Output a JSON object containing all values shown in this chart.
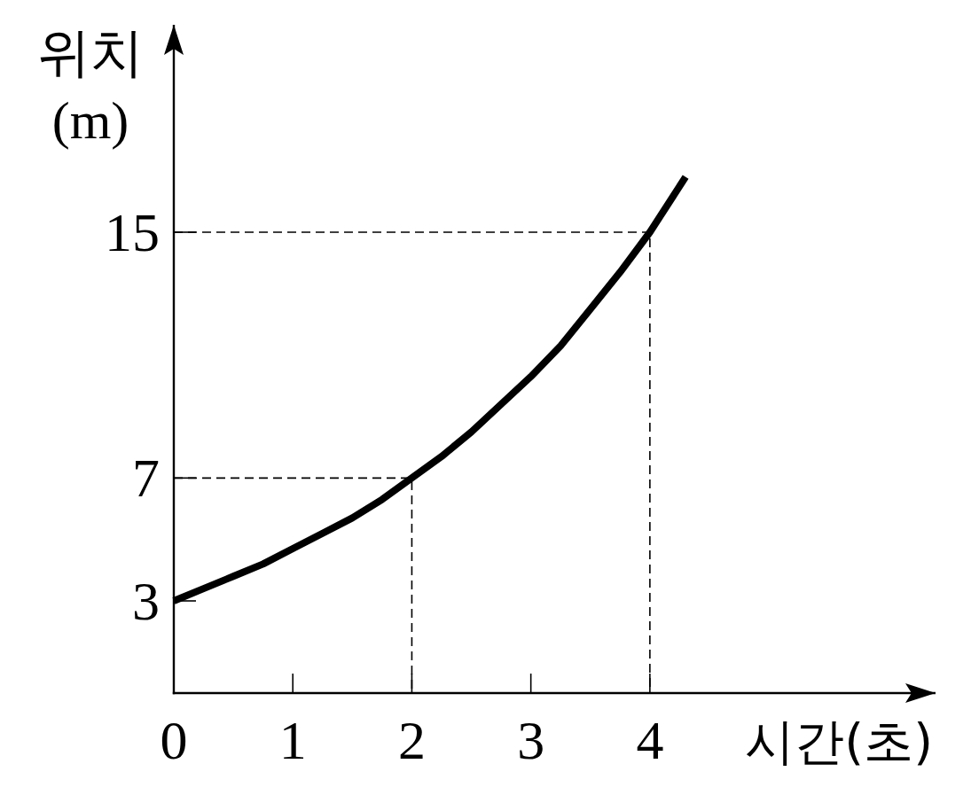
{
  "chart_data": {
    "type": "line",
    "xlabel": "시간(초)",
    "ylabel": "위치 (m)",
    "xlim": [
      0,
      6.4
    ],
    "ylim": [
      0,
      21.75
    ],
    "xticks": [
      0,
      1,
      2,
      3,
      4
    ],
    "yticks": [
      3,
      7,
      15
    ],
    "series": [
      {
        "color": "#000000",
        "line_style": "dashed",
        "x": [
          0,
          2,
          2
        ],
        "values": [
          7,
          7,
          0
        ]
      },
      {
        "color": "#000000",
        "line_style": "dashed",
        "x": [
          0,
          4,
          4
        ],
        "values": [
          15,
          15,
          0
        ]
      },
      {
        "color": "#000000",
        "line_style": "solid",
        "x": [
          0,
          0.25,
          0.5,
          0.75,
          1,
          1.25,
          1.5,
          1.75,
          2,
          2.25,
          2.5,
          2.75,
          3,
          3.25,
          3.5,
          3.75,
          4,
          4.3
        ],
        "values": [
          3,
          3.4,
          3.8,
          4.2,
          4.7,
          5.2,
          5.7,
          6.3,
          7,
          7.7,
          8.5,
          9.4,
          10.3,
          11.3,
          12.5,
          13.7,
          15,
          16.8
        ]
      }
    ]
  }
}
